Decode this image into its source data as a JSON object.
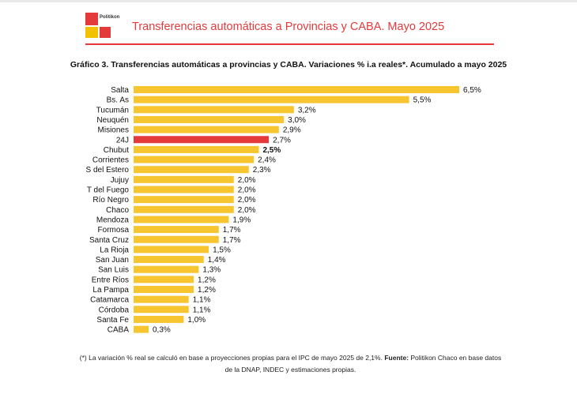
{
  "header": {
    "brand": "Politikon",
    "title": "Transferencias automáticas a Provincias y CABA. Mayo 2025"
  },
  "chart_data": {
    "type": "bar",
    "orientation": "horizontal",
    "title": "Gráfico 3. Transferencias automáticas a provincias y CABA. Variaciones % i.a reales*. Acumulado a mayo 2025",
    "categories": [
      "Salta",
      "Bs. As",
      "Tucumán",
      "Neuquén",
      "Misiones",
      "24J",
      "Chubut",
      "Corrientes",
      "S del Estero",
      "Jujuy",
      "T del Fuego",
      "Río Negro",
      "Chaco",
      "Mendoza",
      "Formosa",
      "Santa Cruz",
      "La Rioja",
      "San Juan",
      "San Luis",
      "Entre Ríos",
      "La Pampa",
      "Catamarca",
      "Córdoba",
      "Santa Fe",
      "CABA"
    ],
    "values": [
      6.5,
      5.5,
      3.2,
      3.0,
      2.9,
      2.7,
      2.5,
      2.4,
      2.3,
      2.0,
      2.0,
      2.0,
      2.0,
      1.9,
      1.7,
      1.7,
      1.5,
      1.4,
      1.3,
      1.2,
      1.2,
      1.1,
      1.1,
      1.0,
      0.3
    ],
    "labels": [
      "6,5%",
      "5,5%",
      "3,2%",
      "3,0%",
      "2,9%",
      "2,7%",
      "2,5%",
      "2,4%",
      "2,3%",
      "2,0%",
      "2,0%",
      "2,0%",
      "2,0%",
      "1,9%",
      "1,7%",
      "1,7%",
      "1,5%",
      "1,4%",
      "1,3%",
      "1,2%",
      "1,2%",
      "1,1%",
      "1,1%",
      "1,0%",
      "0,3%"
    ],
    "highlight": "24J",
    "bold_label": "Chubut",
    "xlim": [
      0,
      6.5
    ],
    "grid": false,
    "colors": {
      "bar": "#f7c530",
      "highlight": "#e43a3c"
    }
  },
  "footnote": {
    "text": "(*) La variación % real se calculó en base a proyecciones propias para el IPC de mayo 2025 de 2,1%. ",
    "source_label": "Fuente:",
    "source_text": " Politikon Chaco en base datos de la DNAP, INDEC y estimaciones propias."
  }
}
